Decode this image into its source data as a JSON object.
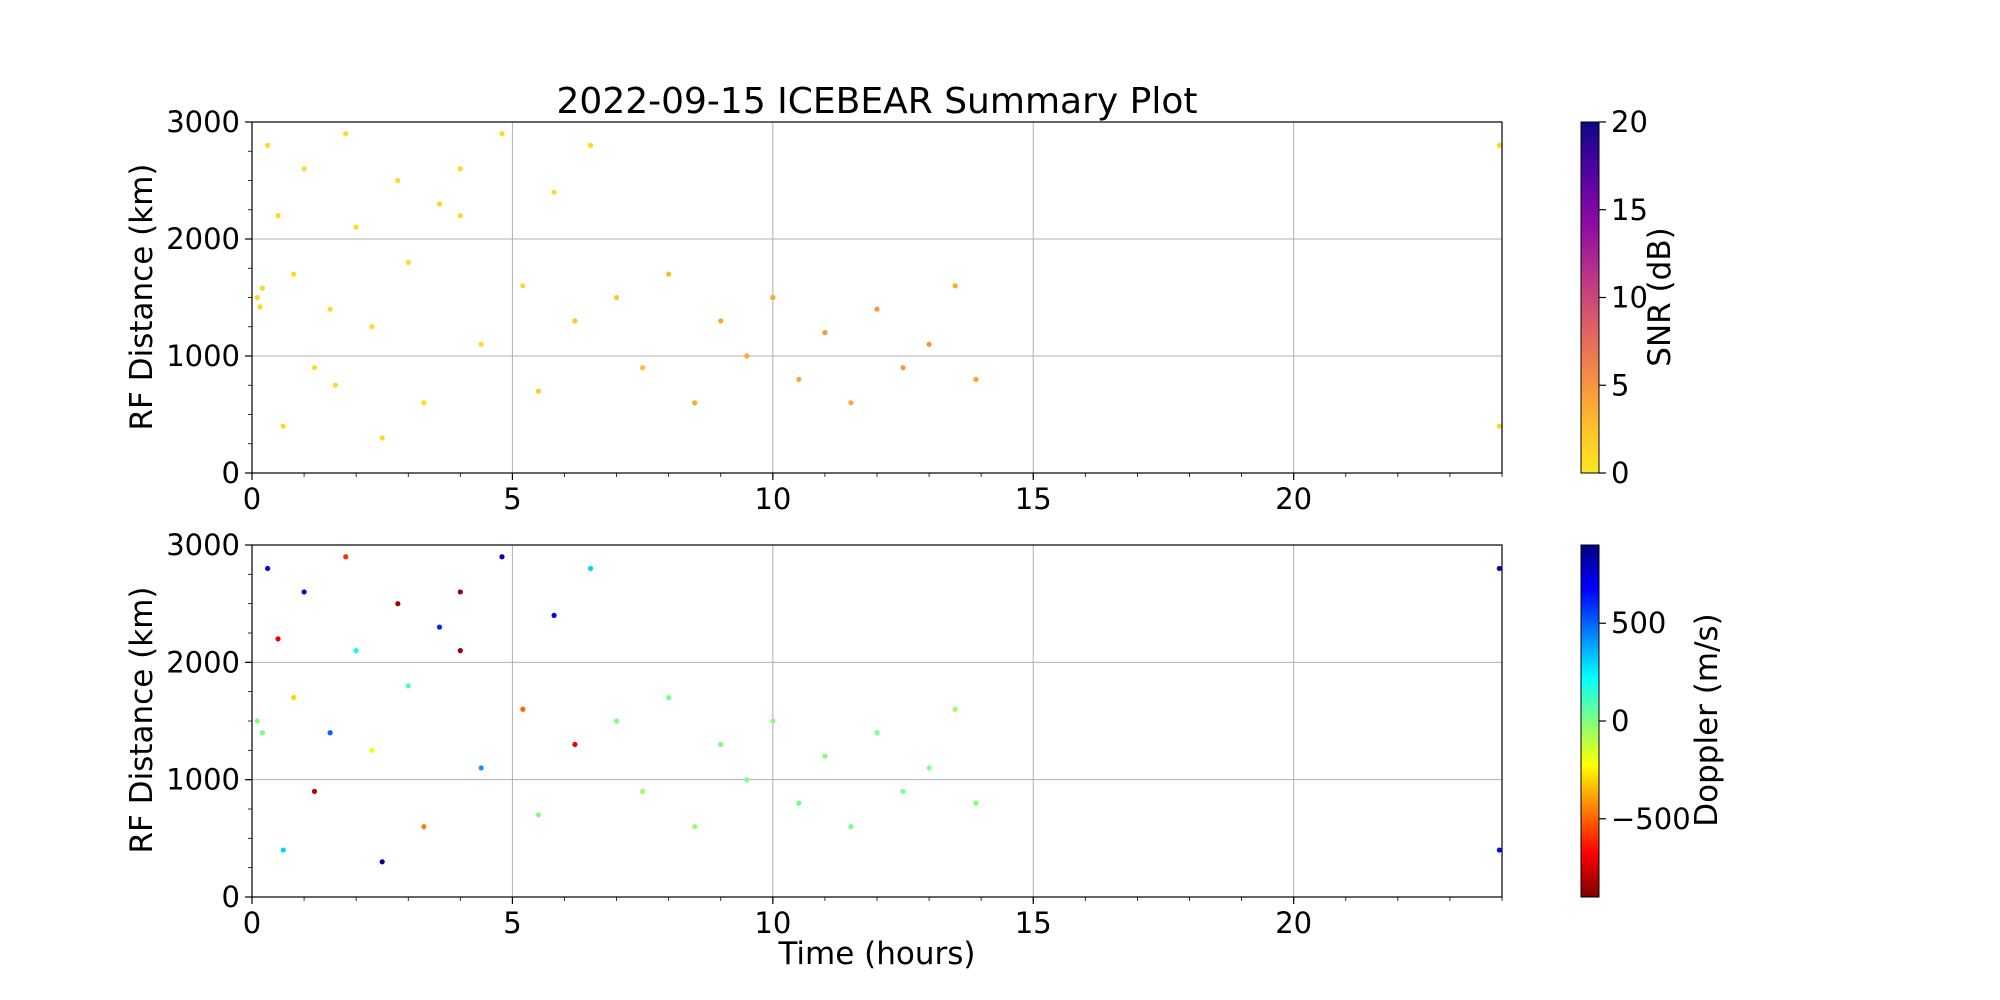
{
  "chart_data": [
    {
      "type": "scatter",
      "title": "2022-09-15 ICEBEAR Summary Plot",
      "xlabel": "",
      "ylabel": "RF Distance (km)",
      "xlim": [
        0,
        24
      ],
      "ylim": [
        0,
        3000
      ],
      "xticks": [
        "0",
        "5",
        "10",
        "15",
        "20"
      ],
      "xtick_values": [
        0,
        5,
        10,
        15,
        20
      ],
      "yticks": [
        "0",
        "1000",
        "2000",
        "3000"
      ],
      "ytick_values": [
        0,
        1000,
        2000,
        3000
      ],
      "grid": true,
      "colorbar": {
        "label": "SNR (dB)",
        "range": [
          0,
          20
        ],
        "ticks": [
          "0",
          "5",
          "10",
          "15",
          "20"
        ],
        "tick_values": [
          0,
          5,
          10,
          15,
          20
        ],
        "colormap": "plasma_r",
        "colors": [
          "#fde725",
          "#febd2a",
          "#f48849",
          "#db5c68",
          "#b83289",
          "#8b0aa5",
          "#5302a3",
          "#0d0887"
        ]
      },
      "color_by": "snr",
      "points": [
        {
          "x": 0.1,
          "y": 1500,
          "snr": 1
        },
        {
          "x": 0.15,
          "y": 1420,
          "snr": 1
        },
        {
          "x": 0.2,
          "y": 1580,
          "snr": 1
        },
        {
          "x": 0.3,
          "y": 2800,
          "snr": 1
        },
        {
          "x": 0.5,
          "y": 2200,
          "snr": 1
        },
        {
          "x": 0.6,
          "y": 400,
          "snr": 1
        },
        {
          "x": 0.8,
          "y": 1700,
          "snr": 1
        },
        {
          "x": 1.0,
          "y": 2600,
          "snr": 1
        },
        {
          "x": 1.2,
          "y": 900,
          "snr": 1
        },
        {
          "x": 1.5,
          "y": 1400,
          "snr": 1
        },
        {
          "x": 1.6,
          "y": 750,
          "snr": 1
        },
        {
          "x": 1.8,
          "y": 2900,
          "snr": 1
        },
        {
          "x": 2.0,
          "y": 2100,
          "snr": 1
        },
        {
          "x": 2.3,
          "y": 1250,
          "snr": 1
        },
        {
          "x": 2.5,
          "y": 300,
          "snr": 1
        },
        {
          "x": 2.8,
          "y": 2500,
          "snr": 1
        },
        {
          "x": 3.0,
          "y": 1800,
          "snr": 1
        },
        {
          "x": 3.3,
          "y": 600,
          "snr": 1
        },
        {
          "x": 3.6,
          "y": 2300,
          "snr": 1
        },
        {
          "x": 4.0,
          "y": 2600,
          "snr": 1
        },
        {
          "x": 4.0,
          "y": 2200,
          "snr": 1
        },
        {
          "x": 4.4,
          "y": 1100,
          "snr": 1
        },
        {
          "x": 4.8,
          "y": 2900,
          "snr": 1
        },
        {
          "x": 5.2,
          "y": 1600,
          "snr": 1
        },
        {
          "x": 5.5,
          "y": 700,
          "snr": 2
        },
        {
          "x": 5.8,
          "y": 2400,
          "snr": 1
        },
        {
          "x": 6.2,
          "y": 1300,
          "snr": 2
        },
        {
          "x": 6.5,
          "y": 2800,
          "snr": 1
        },
        {
          "x": 7.0,
          "y": 1500,
          "snr": 2
        },
        {
          "x": 7.5,
          "y": 900,
          "snr": 3
        },
        {
          "x": 8.0,
          "y": 1700,
          "snr": 3
        },
        {
          "x": 8.5,
          "y": 600,
          "snr": 4
        },
        {
          "x": 9.0,
          "y": 1300,
          "snr": 4
        },
        {
          "x": 9.5,
          "y": 1000,
          "snr": 4
        },
        {
          "x": 10.0,
          "y": 1500,
          "snr": 4
        },
        {
          "x": 10.5,
          "y": 800,
          "snr": 4
        },
        {
          "x": 11.0,
          "y": 1200,
          "snr": 5
        },
        {
          "x": 11.5,
          "y": 600,
          "snr": 4
        },
        {
          "x": 12.0,
          "y": 1400,
          "snr": 5
        },
        {
          "x": 12.5,
          "y": 900,
          "snr": 5
        },
        {
          "x": 13.0,
          "y": 1100,
          "snr": 5
        },
        {
          "x": 13.5,
          "y": 1600,
          "snr": 4
        },
        {
          "x": 13.9,
          "y": 800,
          "snr": 4
        },
        {
          "x": 23.95,
          "y": 2800,
          "snr": 1
        },
        {
          "x": 23.95,
          "y": 400,
          "snr": 1
        }
      ]
    },
    {
      "type": "scatter",
      "title": "",
      "xlabel": "Time (hours)",
      "ylabel": "RF Distance (km)",
      "xlim": [
        0,
        24
      ],
      "ylim": [
        0,
        3000
      ],
      "xticks": [
        "0",
        "5",
        "10",
        "15",
        "20"
      ],
      "xtick_values": [
        0,
        5,
        10,
        15,
        20
      ],
      "yticks": [
        "0",
        "1000",
        "2000",
        "3000"
      ],
      "ytick_values": [
        0,
        1000,
        2000,
        3000
      ],
      "grid": true,
      "colorbar": {
        "label": "Doppler (m/s)",
        "range": [
          -900,
          900
        ],
        "ticks": [
          "−500",
          "0",
          "500"
        ],
        "tick_values": [
          -500,
          0,
          500
        ],
        "colormap": "jet_r",
        "colors": [
          "#800000",
          "#ff0000",
          "#ff8000",
          "#ffff00",
          "#80ff80",
          "#00ffff",
          "#0080ff",
          "#0000ff",
          "#000080"
        ]
      },
      "color_by": "doppler",
      "points": [
        {
          "x": 0.1,
          "y": 1500,
          "doppler": 0
        },
        {
          "x": 0.2,
          "y": 1400,
          "doppler": 0
        },
        {
          "x": 0.3,
          "y": 2800,
          "doppler": 700
        },
        {
          "x": 0.5,
          "y": 2200,
          "doppler": -700
        },
        {
          "x": 0.6,
          "y": 400,
          "doppler": 300
        },
        {
          "x": 0.8,
          "y": 1700,
          "doppler": -300
        },
        {
          "x": 1.0,
          "y": 2600,
          "doppler": 800
        },
        {
          "x": 1.2,
          "y": 900,
          "doppler": -800
        },
        {
          "x": 1.5,
          "y": 1400,
          "doppler": 500
        },
        {
          "x": 1.8,
          "y": 2900,
          "doppler": -600
        },
        {
          "x": 2.0,
          "y": 2100,
          "doppler": 200
        },
        {
          "x": 2.3,
          "y": 1250,
          "doppler": -200
        },
        {
          "x": 2.5,
          "y": 300,
          "doppler": 850
        },
        {
          "x": 2.8,
          "y": 2500,
          "doppler": -850
        },
        {
          "x": 3.0,
          "y": 1800,
          "doppler": 100
        },
        {
          "x": 3.3,
          "y": 600,
          "doppler": -450
        },
        {
          "x": 3.6,
          "y": 2300,
          "doppler": 600
        },
        {
          "x": 4.0,
          "y": 2600,
          "doppler": -850
        },
        {
          "x": 4.0,
          "y": 2100,
          "doppler": -850
        },
        {
          "x": 4.4,
          "y": 1100,
          "doppler": 400
        },
        {
          "x": 4.8,
          "y": 2900,
          "doppler": 800
        },
        {
          "x": 5.2,
          "y": 1600,
          "doppler": -500
        },
        {
          "x": 5.5,
          "y": 700,
          "doppler": 0
        },
        {
          "x": 5.8,
          "y": 2400,
          "doppler": 700
        },
        {
          "x": 6.2,
          "y": 1300,
          "doppler": -700
        },
        {
          "x": 6.5,
          "y": 2800,
          "doppler": 300
        },
        {
          "x": 7.0,
          "y": 1500,
          "doppler": 0
        },
        {
          "x": 7.5,
          "y": 900,
          "doppler": -50
        },
        {
          "x": 8.0,
          "y": 1700,
          "doppler": 20
        },
        {
          "x": 8.5,
          "y": 600,
          "doppler": -30
        },
        {
          "x": 9.0,
          "y": 1300,
          "doppler": 10
        },
        {
          "x": 9.5,
          "y": 1000,
          "doppler": 0
        },
        {
          "x": 10.0,
          "y": 1500,
          "doppler": -20
        },
        {
          "x": 10.5,
          "y": 800,
          "doppler": 30
        },
        {
          "x": 11.0,
          "y": 1200,
          "doppler": 0
        },
        {
          "x": 11.5,
          "y": 600,
          "doppler": 10
        },
        {
          "x": 12.0,
          "y": 1400,
          "doppler": -10
        },
        {
          "x": 12.5,
          "y": 900,
          "doppler": 20
        },
        {
          "x": 13.0,
          "y": 1100,
          "doppler": 0
        },
        {
          "x": 13.5,
          "y": 1600,
          "doppler": -40
        },
        {
          "x": 13.9,
          "y": 800,
          "doppler": 0
        },
        {
          "x": 23.95,
          "y": 2800,
          "doppler": 800
        },
        {
          "x": 23.95,
          "y": 400,
          "doppler": 700
        }
      ]
    }
  ]
}
